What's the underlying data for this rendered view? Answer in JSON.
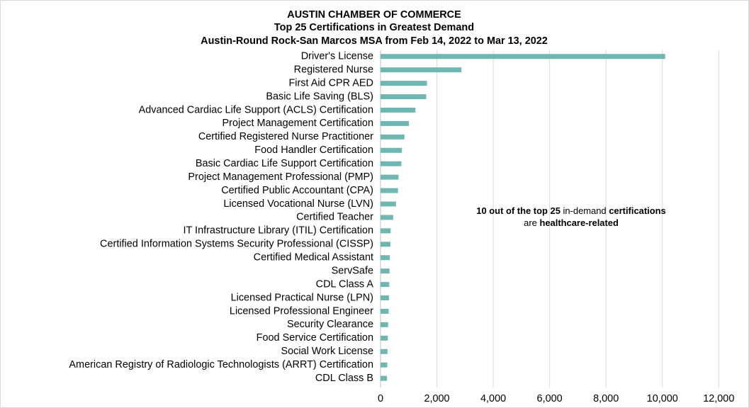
{
  "chart_data": {
    "type": "bar",
    "orientation": "horizontal",
    "title_lines": [
      "AUSTIN CHAMBER OF COMMERCE",
      "Top 25 Certifications in Greatest Demand",
      "Austin-Round Rock-San Marcos MSA from Feb 14, 2022 to Mar 13, 2022"
    ],
    "categories": [
      "Driver's License",
      "Registered Nurse",
      "First Aid CPR AED",
      "Basic Life Saving (BLS)",
      "Advanced Cardiac Life Support (ACLS) Certification",
      "Project Management Certification",
      "Certified Registered Nurse Practitioner",
      "Food Handler Certification",
      "Basic Cardiac Life Support Certification",
      "Project Management Professional (PMP)",
      "Certified Public Accountant (CPA)",
      "Licensed Vocational Nurse (LVN)",
      "Certified Teacher",
      "IT Infrastructure Library (ITIL) Certification",
      "Certified Information Systems Security Professional (CISSP)",
      "Certified Medical Assistant",
      "ServSafe",
      "CDL Class A",
      "Licensed Practical Nurse (LPN)",
      "Licensed Professional Engineer",
      "Security Clearance",
      "Food Service Certification",
      "Social Work License",
      "American Registry of Radiologic Technologists (ARRT) Certification",
      "CDL Class B"
    ],
    "values": [
      10100,
      2870,
      1650,
      1620,
      1240,
      1010,
      850,
      760,
      740,
      640,
      620,
      550,
      450,
      360,
      350,
      330,
      320,
      310,
      300,
      290,
      270,
      260,
      250,
      240,
      230
    ],
    "xlim": [
      0,
      12000
    ],
    "xticks": [
      "0",
      "2,000",
      "4,000",
      "6,000",
      "8,000",
      "10,000",
      "12,000"
    ],
    "xtick_values": [
      0,
      2000,
      4000,
      6000,
      8000,
      10000,
      12000
    ],
    "grid": "vertical",
    "legend": "none",
    "bar_color": "#6fb7b3",
    "annotation": {
      "parts": [
        {
          "text": "10 out of the top 25",
          "bold": true
        },
        {
          "text": " in-demand ",
          "bold": false
        },
        {
          "text": "certifications",
          "bold": true
        }
      ],
      "line2_parts": [
        {
          "text": "are ",
          "bold": false
        },
        {
          "text": "healthcare-related",
          "bold": true
        }
      ]
    }
  }
}
